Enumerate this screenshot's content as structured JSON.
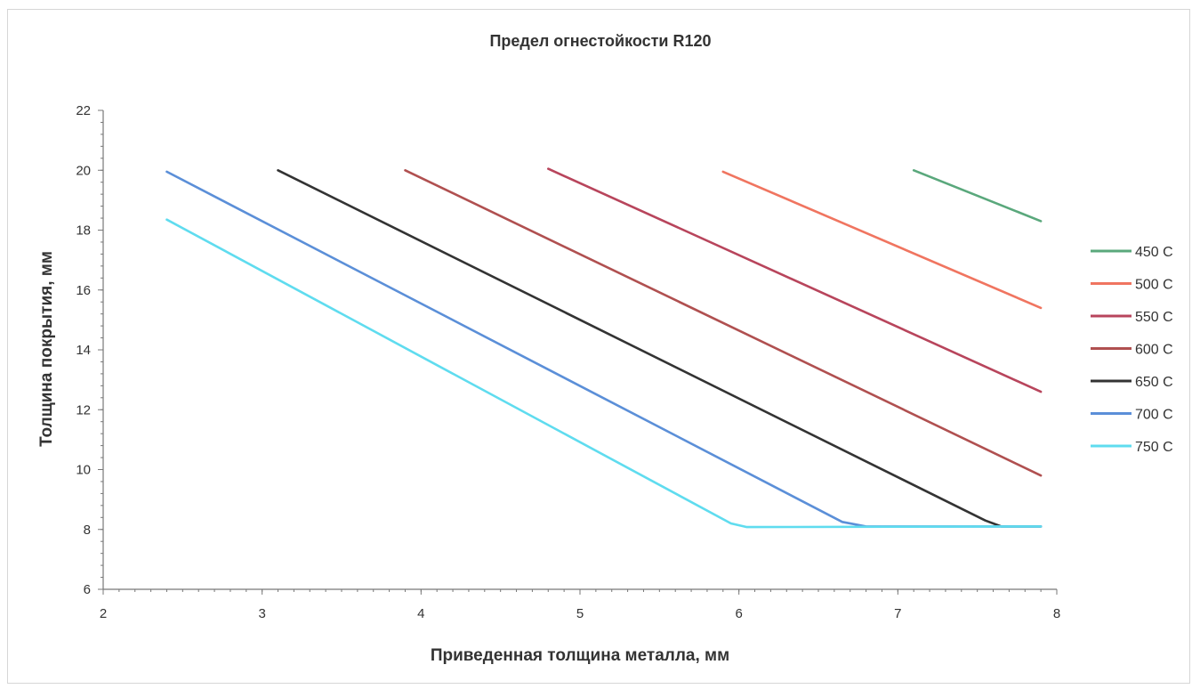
{
  "chart_data": {
    "type": "line",
    "title": "Предел огнестойкости R120",
    "xlabel": "Приведенная толщина металла, мм",
    "ylabel": "Толщина покрытия, мм",
    "xlim": [
      2,
      8
    ],
    "ylim": [
      6,
      22
    ],
    "x_ticks": [
      "2",
      "3",
      "4",
      "5",
      "6",
      "7",
      "8"
    ],
    "y_ticks": [
      "6",
      "8",
      "10",
      "12",
      "14",
      "16",
      "18",
      "20",
      "22"
    ],
    "grid": false,
    "legend_position": "right",
    "series": [
      {
        "name": "450 C",
        "color": "#5aa87c",
        "x": [
          7.1,
          7.9
        ],
        "y": [
          20.0,
          18.3
        ]
      },
      {
        "name": "500 C",
        "color": "#f07560",
        "x": [
          5.9,
          7.9
        ],
        "y": [
          19.95,
          15.4
        ]
      },
      {
        "name": "550 C",
        "color": "#b8455c",
        "x": [
          4.8,
          7.9
        ],
        "y": [
          20.05,
          12.6
        ]
      },
      {
        "name": "600 C",
        "color": "#b05050",
        "x": [
          3.9,
          7.9
        ],
        "y": [
          20.0,
          9.8
        ]
      },
      {
        "name": "650 C",
        "color": "#333333",
        "x": [
          3.1,
          7.55,
          7.65,
          7.9
        ],
        "y": [
          20.0,
          8.3,
          8.1,
          8.1
        ]
      },
      {
        "name": "700 C",
        "color": "#5b8fd8",
        "x": [
          2.4,
          6.65,
          6.8,
          7.9
        ],
        "y": [
          19.95,
          8.25,
          8.1,
          8.1
        ]
      },
      {
        "name": "750 C",
        "color": "#5fdcef",
        "x": [
          2.4,
          5.95,
          6.05,
          7.9
        ],
        "y": [
          18.35,
          8.2,
          8.08,
          8.1
        ]
      }
    ]
  }
}
